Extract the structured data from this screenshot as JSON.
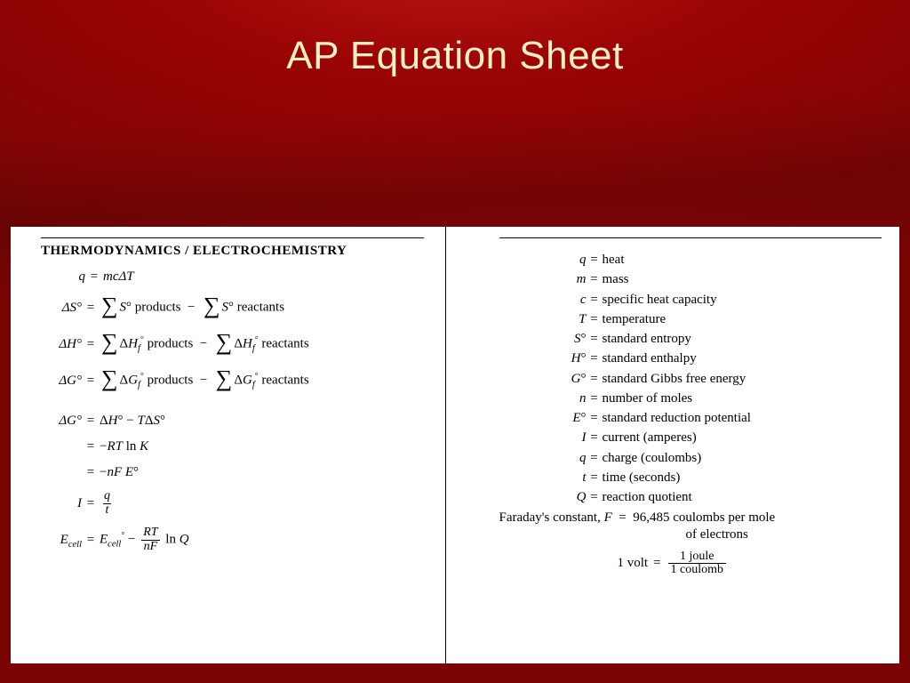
{
  "colors": {
    "bg_center": "#c01818",
    "bg_outer": "#7a0404",
    "title_color": "#f5f0c8",
    "sheet_bg": "#ffffff",
    "text": "#000000"
  },
  "title": "AP Equation Sheet",
  "left": {
    "section_heading": "THERMODYNAMICS / ELECTROCHEMISTRY",
    "eq1_lhs": "q",
    "eq1_rhs": "mcΔT",
    "eq2_lhs": "ΔS°",
    "eq2_term1": "S°",
    "eq2_word_products": "products",
    "eq2_term2": "S°",
    "eq2_word_reactants": "reactants",
    "eq3_lhs": "ΔH°",
    "eq3_term1": "ΔH",
    "eq3_sub": "f",
    "eq3_sup": "°",
    "eq4_lhs": "ΔG°",
    "eq4_term1": "ΔG",
    "eq4_sub": "f",
    "eq5_lhs": "ΔG°",
    "eq5_rhs1": "ΔH° − TΔS°",
    "eq5_rhs2": "−RT ln K",
    "eq5_rhs3": "−nF E°",
    "eq6_lhs": "I",
    "eq6_num": "q",
    "eq6_den": "t",
    "eq7_lhs": "E",
    "eq7_sub": "cell",
    "eq7_rhs_a": "E",
    "eq7_rhs_a_sup": "°",
    "eq7_rhs_minus": " − ",
    "eq7_frac_num": "RT",
    "eq7_frac_den": "nF",
    "eq7_rhs_tail": " ln Q"
  },
  "right": {
    "defs": [
      {
        "sym": "q",
        "def": "heat"
      },
      {
        "sym": "m",
        "def": "mass"
      },
      {
        "sym": "c",
        "def": "specific heat capacity"
      },
      {
        "sym": "T",
        "def": "temperature"
      },
      {
        "sym": "S°",
        "def": "standard entropy"
      },
      {
        "sym": "H°",
        "def": "standard enthalpy"
      },
      {
        "sym": "G°",
        "def": "standard Gibbs free energy"
      },
      {
        "sym": "n",
        "def": "number of moles"
      },
      {
        "sym": "E°",
        "def": "standard reduction potential"
      },
      {
        "sym": "I",
        "def": "current (amperes)"
      },
      {
        "sym": "q",
        "def": "charge (coulombs)"
      },
      {
        "sym": "t",
        "def": "time (seconds)"
      },
      {
        "sym": "Q",
        "def": "reaction quotient"
      }
    ],
    "faraday_label": "Faraday's constant, ",
    "faraday_sym": "F",
    "faraday_val_line1": "96,485 coulombs per mole",
    "faraday_val_line2": "of electrons",
    "volt_lhs": "1 volt",
    "volt_num": "1 joule",
    "volt_den": "1 coulomb"
  }
}
